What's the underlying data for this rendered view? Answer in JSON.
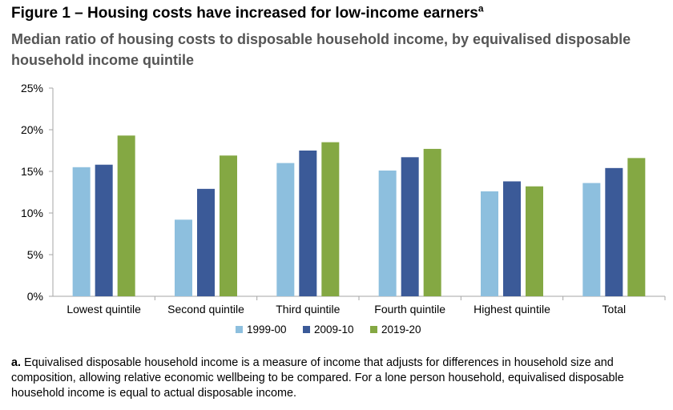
{
  "figure": {
    "title": "Figure 1 – Housing costs have increased for low-income earners",
    "title_sup": "a",
    "subtitle": "Median ratio of housing costs to disposable household income, by equivalised disposable household income quintile"
  },
  "chart_data": {
    "type": "bar",
    "categories": [
      "Lowest quintile",
      "Second quintile",
      "Third quintile",
      "Fourth quintile",
      "Highest quintile",
      "Total"
    ],
    "series": [
      {
        "name": "1999-00",
        "color": "#8dbfde",
        "values": [
          15.5,
          9.2,
          16.0,
          15.1,
          12.6,
          13.6
        ]
      },
      {
        "name": "2009-10",
        "color": "#3b5a98",
        "values": [
          15.8,
          12.9,
          17.5,
          16.7,
          13.8,
          15.4
        ]
      },
      {
        "name": "2019-20",
        "color": "#84a843",
        "values": [
          19.3,
          16.9,
          18.5,
          17.7,
          13.2,
          16.6
        ]
      }
    ],
    "yticks": [
      "0%",
      "5%",
      "10%",
      "15%",
      "20%",
      "25%"
    ],
    "ylim": [
      0,
      25
    ],
    "grid": false,
    "legend": "bottom"
  },
  "footnote": {
    "marker": "a.",
    "text": " Equivalised disposable household income is a measure of income that adjusts for differences in household size and composition, allowing relative economic wellbeing to be compared. For a lone person household, equivalised disposable household income is equal to actual disposable income."
  }
}
